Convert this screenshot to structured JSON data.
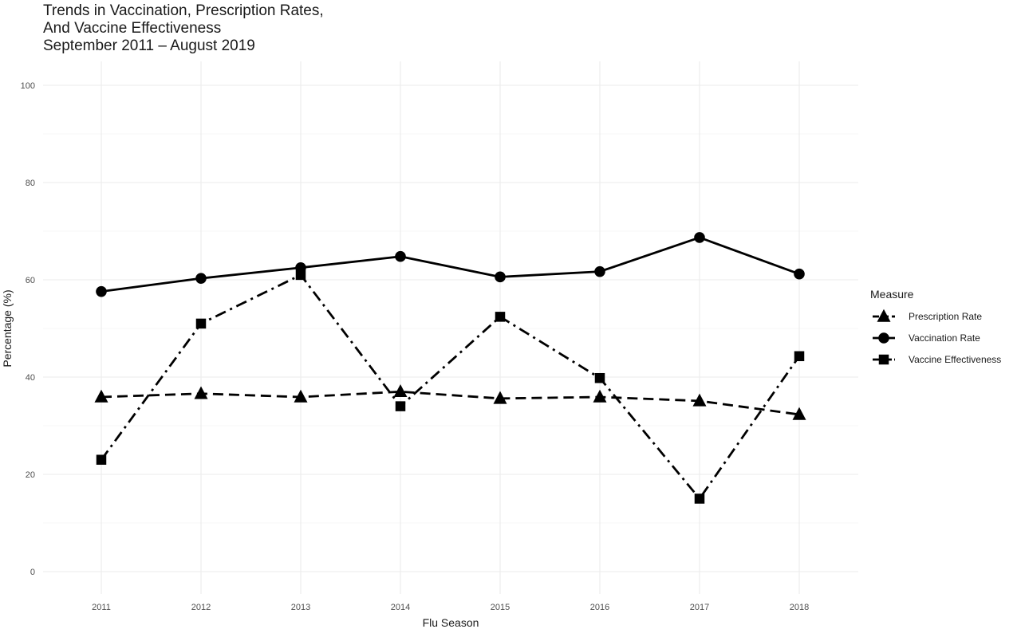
{
  "chart_data": {
    "type": "line",
    "title": [
      "Trends in Vaccination, Prescription Rates,",
      "And Vaccine Effectiveness",
      "September 2011 – August 2019"
    ],
    "xlabel": "Flu Season",
    "ylabel": "Percentage (%)",
    "x": [
      2011,
      2012,
      2013,
      2014,
      2015,
      2016,
      2017,
      2018
    ],
    "x_tick_labels": [
      "2011",
      "2012",
      "2013",
      "2014",
      "2015",
      "2016",
      "2017",
      "2018"
    ],
    "ylim": [
      0,
      100
    ],
    "y_ticks": [
      0,
      20,
      40,
      60,
      80,
      100
    ],
    "y_tick_labels": [
      "0",
      "20",
      "40",
      "60",
      "80",
      "100"
    ],
    "grid": true,
    "legend": {
      "title": "Measure",
      "position": "right"
    },
    "series": [
      {
        "name": "Prescription Rate",
        "marker": "triangle",
        "linestyle": "dashed",
        "color": "#000000",
        "values": [
          35.9,
          36.6,
          35.9,
          37.0,
          35.6,
          35.9,
          35.1,
          32.3
        ]
      },
      {
        "name": "Vaccination Rate",
        "marker": "circle",
        "linestyle": "solid",
        "color": "#000000",
        "values": [
          57.6,
          60.3,
          62.5,
          64.8,
          60.6,
          61.7,
          68.7,
          61.2
        ]
      },
      {
        "name": "Vaccine Effectiveness",
        "marker": "square",
        "linestyle": "dotdash",
        "color": "#000000",
        "values": [
          23.0,
          51.0,
          61.0,
          34.0,
          52.4,
          39.8,
          15.0,
          44.3
        ]
      }
    ]
  }
}
